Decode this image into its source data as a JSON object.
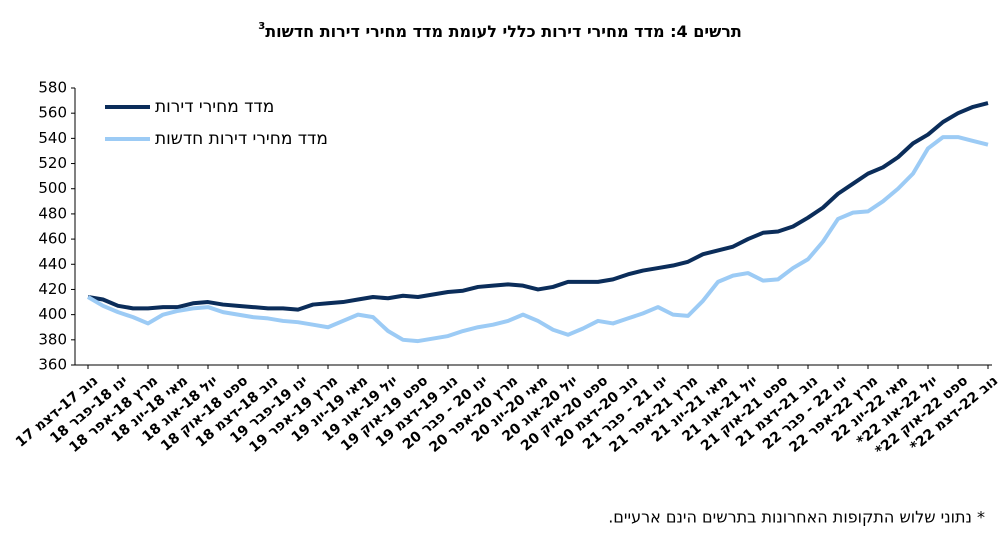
{
  "chart_data": {
    "type": "line",
    "title": "תרשים 4: מדד מחירי דירות כללי לעומת מדד מחירי דירות חדשות",
    "title_superscript": "3",
    "footnote": "* נתוני שלוש התקופות האחרונות בתרשים הינם ארעיים.",
    "categories": [
      "נוב 17-דצמ 17",
      null,
      "ינו 18-פבר 18",
      null,
      "מרץ 18-אפר 18",
      null,
      "מאי 18-יונ 18",
      null,
      "יול 18-אוג 18",
      null,
      "ספט 18-אוק 18",
      null,
      "נוב 18-דצמ 18",
      null,
      "ינו 19-פבר 19",
      null,
      "מרץ 19-אפר 19",
      null,
      "מאי 19-יונ 19",
      null,
      "יול 19-אוג 19",
      null,
      "ספט 19-אוק 19",
      null,
      "נוב 19-דצמ 19",
      null,
      "ינו 20 - פבר 20",
      null,
      "מרץ 20-אפר 20",
      null,
      "מאי 20-יונ 20",
      null,
      "יול 20-אוג 20",
      null,
      "ספט 20-אוק 20",
      null,
      "נוב 20-דצמ 20",
      null,
      "ינו 21 - פבר 21",
      null,
      "מרץ 21-אפר 21",
      null,
      "מאי 21-יונ 21",
      null,
      "יול 21-אוג 21",
      null,
      "ספט 21-אוק 21",
      null,
      "נוב 21-דצמ 21",
      null,
      "ינו 22 - פבר 22",
      null,
      "מרץ 22-אפר 22",
      null,
      "מאי 22-יונ 22",
      null,
      "יול 22-אוג 22*",
      null,
      "ספט 22-אוק 22*",
      null,
      "נוב 22-דצמ 22*"
    ],
    "series": [
      {
        "name": "מדד מחירי דירות",
        "color": "#0b2d5a",
        "values": [
          414,
          412,
          407,
          405,
          405,
          406,
          406,
          409,
          410,
          408,
          407,
          406,
          405,
          405,
          404,
          408,
          409,
          410,
          412,
          414,
          413,
          415,
          414,
          416,
          418,
          419,
          422,
          423,
          424,
          423,
          420,
          422,
          426,
          426,
          426,
          428,
          432,
          435,
          437,
          439,
          442,
          448,
          451,
          454,
          460,
          465,
          466,
          470,
          477,
          485,
          496,
          504,
          512,
          517,
          525,
          536,
          543,
          553,
          560,
          565,
          568
        ]
      },
      {
        "name": "מדד מחירי דירות חדשות",
        "color": "#9ccbf5",
        "values": [
          414,
          407,
          402,
          398,
          393,
          400,
          403,
          405,
          406,
          402,
          400,
          398,
          397,
          395,
          394,
          392,
          390,
          395,
          400,
          398,
          387,
          380,
          379,
          381,
          383,
          387,
          390,
          392,
          395,
          400,
          395,
          388,
          384,
          389,
          395,
          393,
          397,
          401,
          406,
          400,
          399,
          411,
          426,
          431,
          433,
          427,
          428,
          437,
          444,
          458,
          476,
          481,
          482,
          490,
          500,
          512,
          532,
          541,
          541,
          538,
          535
        ]
      }
    ],
    "ylim": [
      360,
      580
    ],
    "yticks": [
      360,
      380,
      400,
      420,
      440,
      460,
      480,
      500,
      520,
      540,
      560,
      580
    ],
    "grid": false,
    "legend": "upper left"
  }
}
